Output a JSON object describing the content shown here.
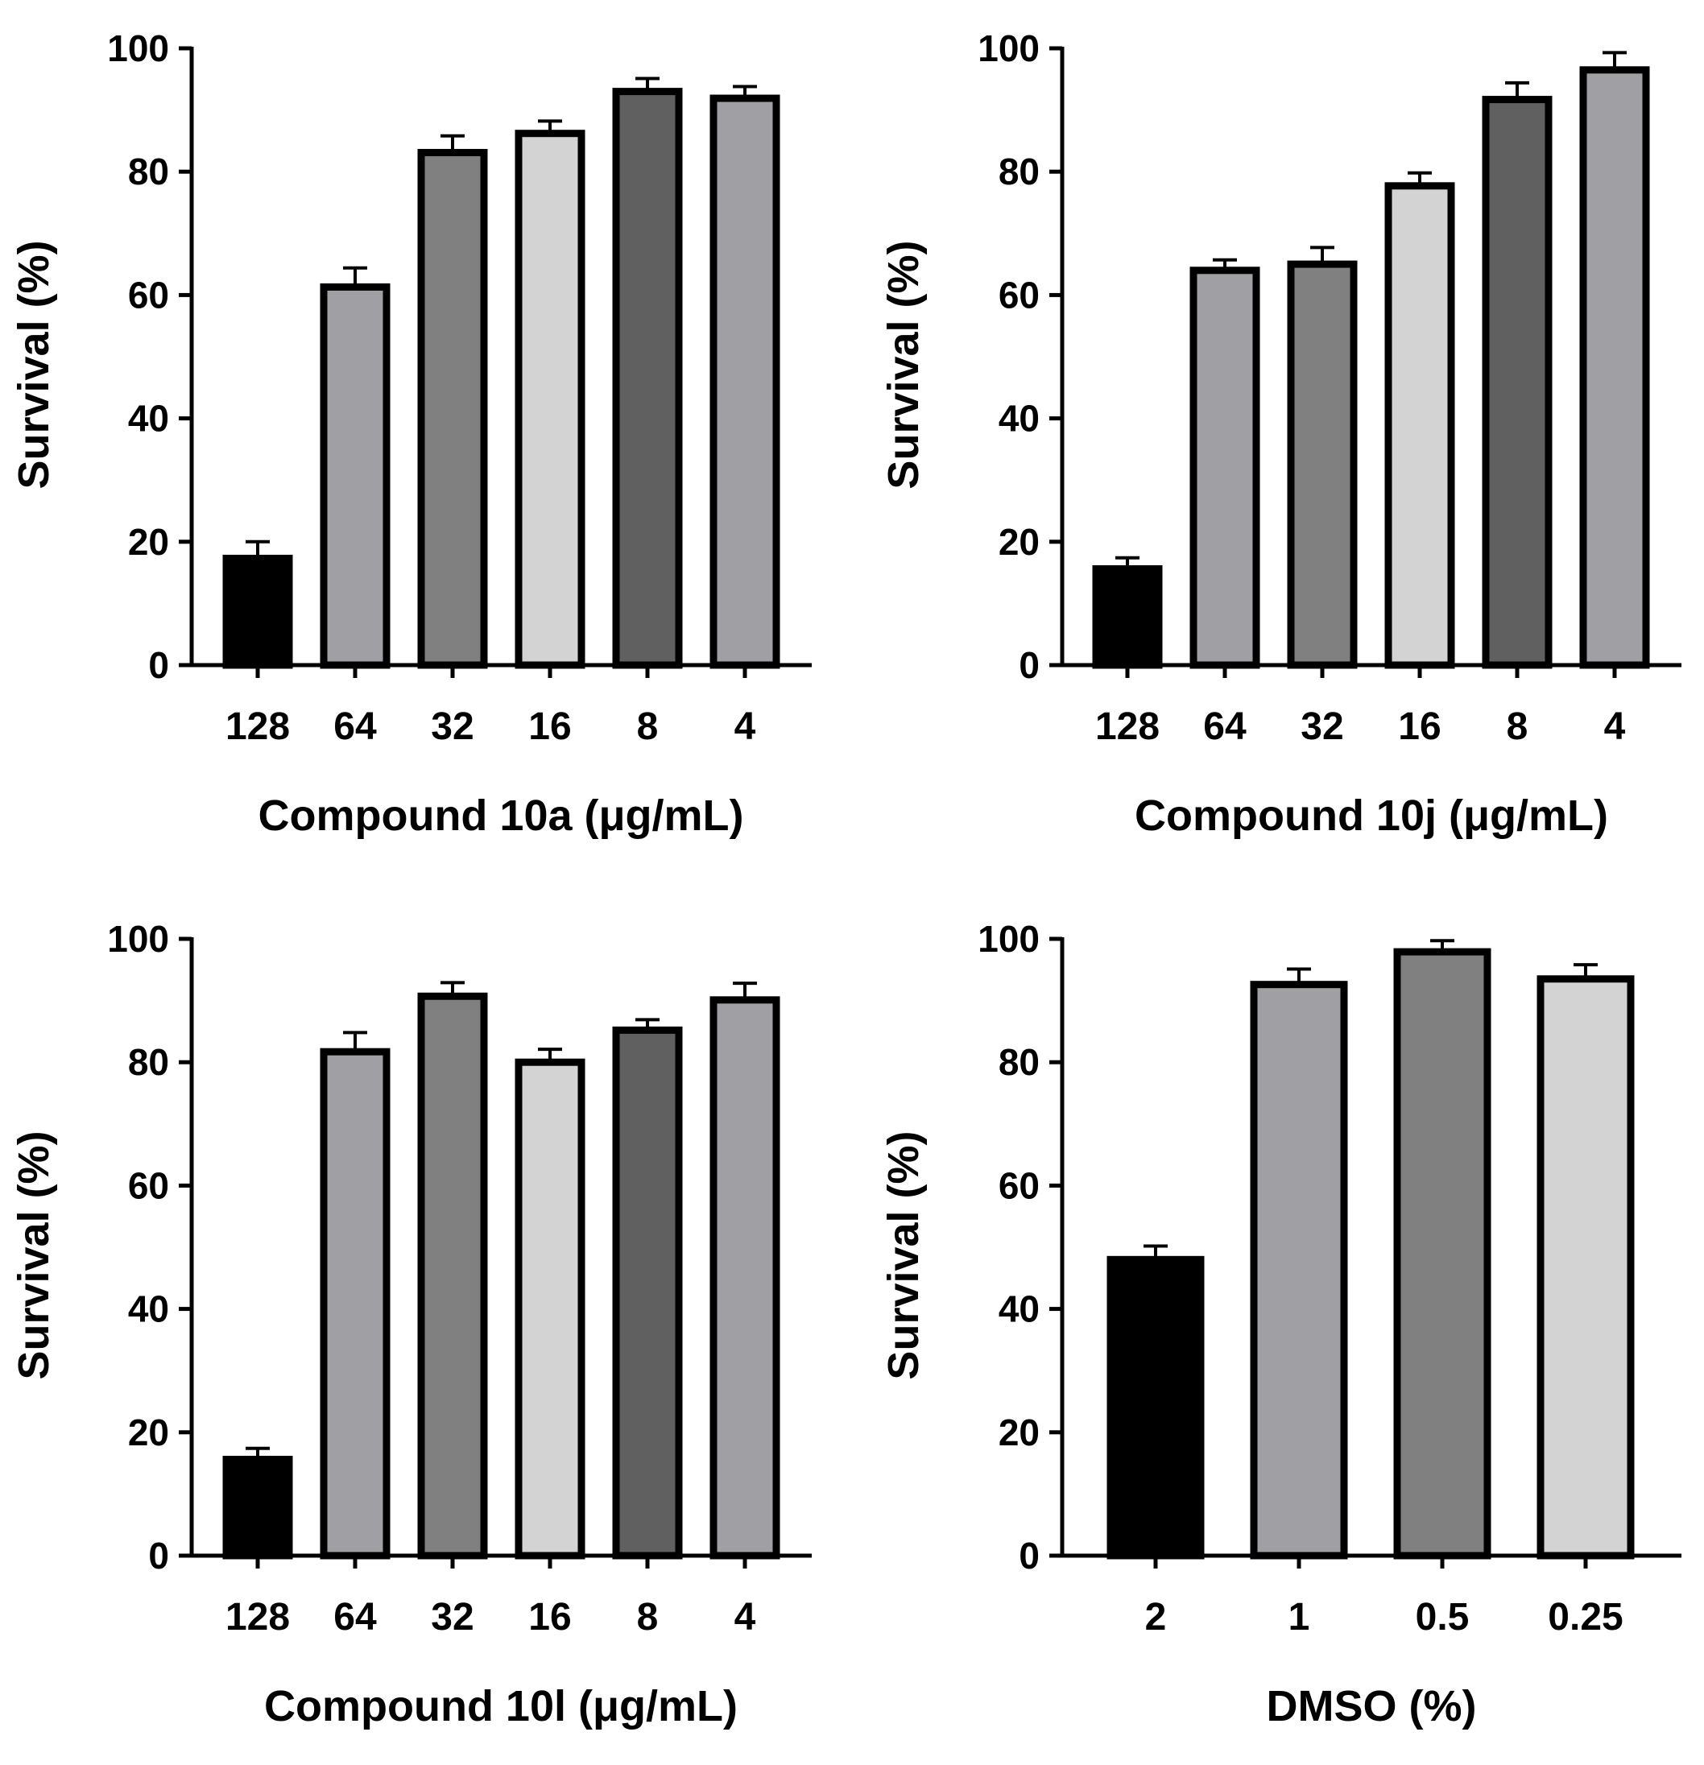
{
  "chart_data": [
    {
      "id": "10a",
      "type": "bar",
      "ylabel": "Survival (%)",
      "xlabel": "Compound 10a (μg/mL)",
      "ylim": [
        0,
        100
      ],
      "yticks": [
        "0",
        "20",
        "40",
        "60",
        "80",
        "100"
      ],
      "categories": [
        "128",
        "64",
        "32",
        "16",
        "8",
        "4"
      ],
      "values": [
        17.3,
        61.3,
        83.1,
        86.2,
        93.0,
        91.9
      ],
      "errors": [
        2.7,
        3.1,
        2.7,
        2.0,
        2.1,
        1.9
      ],
      "colors": [
        "#000000",
        "#a0a0a4",
        "#808080",
        "#d3d3d3",
        "#606060",
        "#a0a0a4"
      ]
    },
    {
      "id": "10j",
      "type": "bar",
      "ylabel": "Survival (%)",
      "xlabel": "Compound 10j (μg/mL)",
      "ylim": [
        0,
        100
      ],
      "yticks": [
        "0",
        "20",
        "40",
        "60",
        "80",
        "100"
      ],
      "categories": [
        "128",
        "64",
        "32",
        "16",
        "8",
        "4"
      ],
      "values": [
        15.6,
        64.0,
        65.0,
        77.7,
        91.7,
        96.5
      ],
      "errors": [
        1.8,
        1.7,
        2.7,
        2.1,
        2.7,
        2.8
      ],
      "colors": [
        "#000000",
        "#a0a0a4",
        "#808080",
        "#d3d3d3",
        "#606060",
        "#a0a0a4"
      ]
    },
    {
      "id": "10l",
      "type": "bar",
      "ylabel": "Survival (%)",
      "xlabel": "Compound 10l (μg/mL)",
      "ylim": [
        0,
        100
      ],
      "yticks": [
        "0",
        "20",
        "40",
        "60",
        "80",
        "100"
      ],
      "categories": [
        "128",
        "64",
        "32",
        "16",
        "8",
        "4"
      ],
      "values": [
        15.6,
        81.7,
        90.7,
        80.0,
        85.2,
        90.1
      ],
      "errors": [
        1.8,
        3.1,
        2.2,
        2.1,
        1.7,
        2.7
      ],
      "colors": [
        "#000000",
        "#a0a0a4",
        "#808080",
        "#d3d3d3",
        "#606060",
        "#a0a0a4"
      ]
    },
    {
      "id": "dmso",
      "type": "bar",
      "ylabel": "Survival (%)",
      "xlabel": "DMSO (%)",
      "ylim": [
        0,
        100
      ],
      "yticks": [
        "0",
        "20",
        "40",
        "60",
        "80",
        "100"
      ],
      "categories": [
        "2",
        "1",
        "0.5",
        "0.25"
      ],
      "values": [
        48.0,
        92.6,
        97.9,
        93.5
      ],
      "errors": [
        2.2,
        2.5,
        1.8,
        2.3
      ],
      "colors": [
        "#000000",
        "#a0a0a4",
        "#808080",
        "#d3d3d3"
      ]
    }
  ]
}
